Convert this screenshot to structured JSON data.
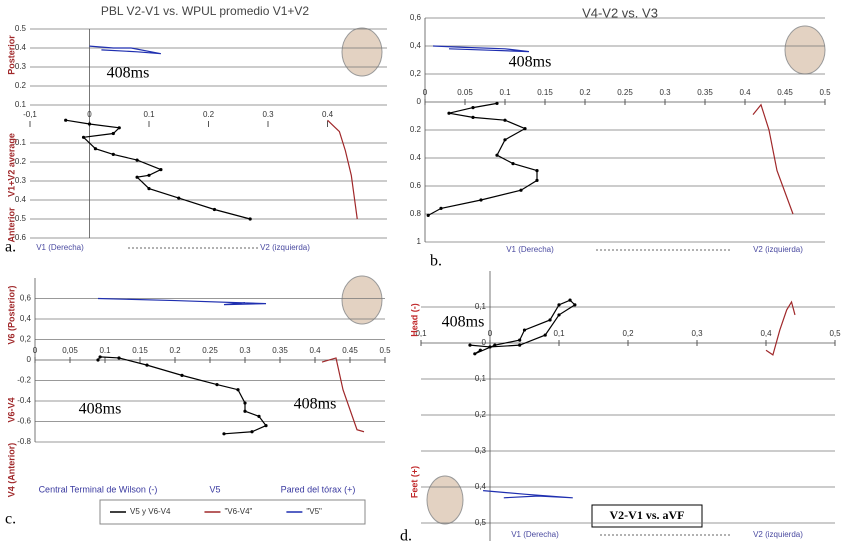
{
  "chart_data": [
    {
      "type": "line",
      "title": "PBL V2-V1 vs. WPUL promedio V1+V2",
      "panel": "a.",
      "annotations": [
        "408ms"
      ],
      "y_axis_labels": [
        "Posterior",
        "V1+V2 average",
        "Anterior"
      ],
      "x_axis_labels": [
        "V1 (Derecha)",
        "V2 (izquierda)"
      ],
      "xlim": [
        -0.1,
        0.5
      ],
      "ylim": [
        -0.6,
        0.5
      ],
      "xticks": [
        {
          "value": -0.1,
          "label": "-0,1"
        },
        0,
        0.1,
        0.2,
        0.3,
        0.4
      ],
      "yticks": [
        0.5,
        0.4,
        0.3,
        0.2,
        0.1,
        {
          "value": -0.1,
          "label": "0.1"
        },
        {
          "value": -0.2,
          "label": "0.2"
        },
        {
          "value": -0.3,
          "label": "0.3"
        },
        {
          "value": -0.4,
          "label": "0.4"
        },
        {
          "value": -0.5,
          "label": "0.5"
        },
        {
          "value": -0.6,
          "label": "0.6"
        }
      ],
      "grid": true,
      "series": [
        {
          "color": "#000000",
          "marker": true,
          "x": [
            -0.04,
            0,
            0.05,
            0.04,
            -0.01,
            0.01,
            0.04,
            0.08,
            0.12,
            0.1,
            0.08,
            0.1,
            0.15,
            0.21,
            0.27
          ],
          "values": [
            0.02,
            0,
            -0.02,
            -0.05,
            -0.07,
            -0.13,
            -0.16,
            -0.19,
            -0.24,
            -0.27,
            -0.28,
            -0.34,
            -0.39,
            -0.45,
            -0.5
          ]
        },
        {
          "color": "#1f2fb0",
          "x": [
            0,
            0.04,
            0.07,
            0.12,
            0.08,
            0.02
          ],
          "values": [
            0.41,
            0.4,
            0.4,
            0.37,
            0.38,
            0.39
          ]
        },
        {
          "color": "#a0282a",
          "x": [
            0.4,
            0.42,
            0.43,
            0.44,
            0.45
          ],
          "values": [
            0.02,
            -0.04,
            -0.14,
            -0.27,
            -0.5
          ]
        }
      ]
    },
    {
      "type": "line",
      "title": "V4-V2 vs. V3",
      "panel": "b.",
      "annotations": [
        "408ms"
      ],
      "x_axis_labels": [
        "V1 (Derecha)",
        "V2 (izquierda)"
      ],
      "xlim": [
        0,
        0.5
      ],
      "ylim": [
        -1,
        0.6
      ],
      "xticks": [
        0,
        0.05,
        0.1,
        0.15,
        0.2,
        0.25,
        0.3,
        0.35,
        0.4,
        0.45,
        0.5
      ],
      "yticks": [
        {
          "value": 0.6,
          "label": "0,6"
        },
        {
          "value": 0.4,
          "label": "0,4"
        },
        {
          "value": 0.2,
          "label": "0,2"
        },
        0,
        {
          "value": -0.2,
          "label": "0.2"
        },
        {
          "value": -0.4,
          "label": "0.4"
        },
        {
          "value": -0.6,
          "label": "0.6"
        },
        {
          "value": -0.8,
          "label": "0.8"
        },
        {
          "value": -1,
          "label": "1"
        }
      ],
      "grid": true,
      "series": [
        {
          "color": "#000000",
          "marker": true,
          "x": [
            0.09,
            0.06,
            0.03,
            0.06,
            0.1,
            0.125,
            0.1,
            0.09,
            0.11,
            0.14,
            0.14,
            0.12,
            0.07,
            0.02,
            0.004
          ],
          "values": [
            -0.01,
            -0.04,
            -0.08,
            -0.11,
            -0.13,
            -0.19,
            -0.27,
            -0.38,
            -0.44,
            -0.49,
            -0.56,
            -0.63,
            -0.7,
            -0.76,
            -0.81
          ]
        },
        {
          "color": "#1f2fb0",
          "x": [
            0.01,
            0.05,
            0.1,
            0.13,
            0.08,
            0.03
          ],
          "values": [
            0.4,
            0.39,
            0.38,
            0.36,
            0.37,
            0.38
          ]
        },
        {
          "color": "#a0282a",
          "x": [
            0.41,
            0.42,
            0.43,
            0.44,
            0.46
          ],
          "values": [
            -0.09,
            -0.02,
            -0.2,
            -0.49,
            -0.8
          ]
        }
      ]
    },
    {
      "type": "line",
      "panel": "c.",
      "annotations": [
        "408ms",
        "408ms"
      ],
      "y_axis_labels": [
        "V6 (Posterior)",
        "V6-V4",
        "V4 (Anterior)"
      ],
      "x_axis_labels": [
        "Central Terminal de Wilson (-)",
        "V5",
        "Pared del tórax (+)"
      ],
      "xlim": [
        0,
        0.5
      ],
      "ylim": [
        -0.8,
        0.8
      ],
      "xticks": [
        0,
        {
          "value": 0.05,
          "label": "0,05"
        },
        0.1,
        0.15,
        0.2,
        0.25,
        0.3,
        0.35,
        0.4,
        0.45,
        0.5
      ],
      "yticks": [
        {
          "value": 0.6,
          "label": "0,6"
        },
        {
          "value": 0.4,
          "label": "0,4"
        },
        {
          "value": 0.2,
          "label": "0,2"
        },
        0,
        -0.2,
        -0.4,
        -0.6,
        -0.8
      ],
      "grid": true,
      "series": [
        {
          "name": "V5 y V6-V4",
          "color": "#000000",
          "marker": true,
          "x": [
            0.09,
            0.093,
            0.12,
            0.16,
            0.21,
            0.26,
            0.29,
            0.3,
            0.3,
            0.32,
            0.33,
            0.31,
            0.27
          ],
          "values": [
            0,
            0.03,
            0.02,
            -0.05,
            -0.15,
            -0.24,
            -0.29,
            -0.42,
            -0.5,
            -0.55,
            -0.64,
            -0.7,
            -0.72
          ]
        },
        {
          "name": "\"V6-V4\"",
          "color": "#a0282a",
          "x": [
            0.41,
            0.43,
            0.44,
            0.46,
            0.47
          ],
          "values": [
            -0.02,
            0.02,
            -0.29,
            -0.68,
            -0.7
          ]
        },
        {
          "name": "\"V5\"",
          "color": "#1f2fb0",
          "x": [
            0.09,
            0.2,
            0.33,
            0.27,
            0.3
          ],
          "values": [
            0.6,
            0.58,
            0.55,
            0.54,
            0.56
          ]
        }
      ]
    },
    {
      "type": "line",
      "title": "V2-V1 vs. aVF",
      "panel": "d.",
      "annotations": [
        "408ms"
      ],
      "y_axis_labels": [
        "Head (-)",
        "Feet (+)"
      ],
      "x_axis_labels": [
        "V1 (Derecha)",
        "V2 (izquierda)"
      ],
      "xlim": [
        -0.1,
        0.5
      ],
      "ylim": [
        -0.55,
        0.2
      ],
      "xticks": [
        {
          "value": -0.1,
          "label": "0,1"
        },
        0,
        {
          "value": 0.1,
          "label": "0,1"
        },
        {
          "value": 0.2,
          "label": "0,2"
        },
        {
          "value": 0.3,
          "label": "0,3"
        },
        {
          "value": 0.4,
          "label": "0,4"
        },
        {
          "value": 0.5,
          "label": "0,5"
        }
      ],
      "yticks": [
        {
          "value": 0.1,
          "label": "0,1"
        },
        0,
        {
          "value": -0.1,
          "label": "0,1"
        },
        {
          "value": -0.2,
          "label": "0,2"
        },
        {
          "value": -0.3,
          "label": "0,3"
        },
        {
          "value": -0.4,
          "label": "0,4"
        },
        {
          "value": -0.5,
          "label": "0,5"
        }
      ],
      "grid": true,
      "series": [
        {
          "color": "#000000",
          "marker": true,
          "x": [
            -0.014,
            -0.022,
            0.007,
            0.043,
            0.05,
            0.087,
            0.1,
            0.116,
            0.123,
            0.1,
            0.08,
            0.043,
            0,
            -0.029
          ],
          "values": [
            -0.02,
            -0.03,
            -0.006,
            0.008,
            0.036,
            0.064,
            0.106,
            0.119,
            0.106,
            0.078,
            0.022,
            -0.006,
            -0.011,
            -0.006
          ]
        },
        {
          "color": "#1f2fb0",
          "x": [
            -0.01,
            0.05,
            0.12,
            0.07,
            0.02
          ],
          "values": [
            -0.41,
            -0.42,
            -0.43,
            -0.425,
            -0.43
          ]
        },
        {
          "color": "#a0282a",
          "x": [
            0.4,
            0.41,
            0.42,
            0.43,
            0.437,
            0.442
          ],
          "values": [
            -0.02,
            -0.033,
            0.036,
            0.092,
            0.114,
            0.078
          ]
        }
      ]
    }
  ]
}
